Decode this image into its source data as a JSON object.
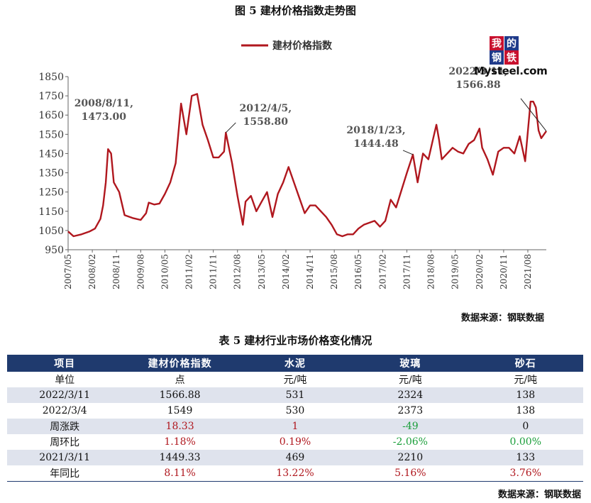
{
  "figure_title": "图 5  建材价格指数走势图",
  "logo": {
    "line1": [
      "我",
      "的"
    ],
    "line2": [
      "钢",
      "铁"
    ],
    "wordmark": "Mysteel.com",
    "colors": [
      "#c8102e",
      "#1f3a8a"
    ]
  },
  "chart_source": "数据来源：钢联数据",
  "chart_data": {
    "type": "line",
    "series": [
      {
        "name": "建材价格指数",
        "color": "#b0171e",
        "points": [
          [
            "2007/05",
            1045
          ],
          [
            "2007/07",
            1020
          ],
          [
            "2007/10",
            1030
          ],
          [
            "2008/01",
            1045
          ],
          [
            "2008/03",
            1060
          ],
          [
            "2008/05",
            1110
          ],
          [
            "2008/06",
            1180
          ],
          [
            "2008/07",
            1300
          ],
          [
            "2008/08/11",
            1473.0
          ],
          [
            "2008/09",
            1450
          ],
          [
            "2008/10",
            1300
          ],
          [
            "2008/12",
            1250
          ],
          [
            "2009/02",
            1130
          ],
          [
            "2009/05",
            1115
          ],
          [
            "2009/08",
            1105
          ],
          [
            "2009/10",
            1140
          ],
          [
            "2009/11",
            1195
          ],
          [
            "2010/01",
            1185
          ],
          [
            "2010/03",
            1190
          ],
          [
            "2010/05",
            1240
          ],
          [
            "2010/07",
            1300
          ],
          [
            "2010/09",
            1400
          ],
          [
            "2010/11",
            1710
          ],
          [
            "2011/01",
            1550
          ],
          [
            "2011/03",
            1750
          ],
          [
            "2011/05",
            1760
          ],
          [
            "2011/07",
            1600
          ],
          [
            "2011/09",
            1520
          ],
          [
            "2011/11",
            1430
          ],
          [
            "2012/01",
            1430
          ],
          [
            "2012/03",
            1460
          ],
          [
            "2012/04/05",
            1558.8
          ],
          [
            "2012/06",
            1400
          ],
          [
            "2012/08",
            1230
          ],
          [
            "2012/10",
            1080
          ],
          [
            "2012/11",
            1200
          ],
          [
            "2013/01",
            1230
          ],
          [
            "2013/03",
            1150
          ],
          [
            "2013/05",
            1200
          ],
          [
            "2013/07",
            1250
          ],
          [
            "2013/09",
            1120
          ],
          [
            "2013/11",
            1240
          ],
          [
            "2014/01",
            1300
          ],
          [
            "2014/03",
            1380
          ],
          [
            "2014/05",
            1300
          ],
          [
            "2014/07",
            1220
          ],
          [
            "2014/09",
            1140
          ],
          [
            "2014/11",
            1180
          ],
          [
            "2015/01",
            1180
          ],
          [
            "2015/03",
            1150
          ],
          [
            "2015/05",
            1120
          ],
          [
            "2015/07",
            1080
          ],
          [
            "2015/09",
            1030
          ],
          [
            "2015/11",
            1020
          ],
          [
            "2016/01",
            1030
          ],
          [
            "2016/03",
            1030
          ],
          [
            "2016/05",
            1060
          ],
          [
            "2016/07",
            1080
          ],
          [
            "2016/09",
            1090
          ],
          [
            "2016/11",
            1100
          ],
          [
            "2017/01",
            1070
          ],
          [
            "2017/03",
            1100
          ],
          [
            "2017/05",
            1210
          ],
          [
            "2017/07",
            1170
          ],
          [
            "2017/09",
            1260
          ],
          [
            "2017/11",
            1350
          ],
          [
            "2018/01/23",
            1444.48
          ],
          [
            "2018/03",
            1300
          ],
          [
            "2018/05",
            1450
          ],
          [
            "2018/07",
            1420
          ],
          [
            "2018/09",
            1540
          ],
          [
            "2018/10",
            1600
          ],
          [
            "2018/11",
            1520
          ],
          [
            "2018/12",
            1420
          ],
          [
            "2019/02",
            1450
          ],
          [
            "2019/04",
            1480
          ],
          [
            "2019/06",
            1460
          ],
          [
            "2019/08",
            1450
          ],
          [
            "2019/10",
            1500
          ],
          [
            "2019/12",
            1520
          ],
          [
            "2020/02",
            1580
          ],
          [
            "2020/03",
            1480
          ],
          [
            "2020/05",
            1420
          ],
          [
            "2020/07",
            1340
          ],
          [
            "2020/09",
            1460
          ],
          [
            "2020/11",
            1480
          ],
          [
            "2021/01",
            1480
          ],
          [
            "2021/03",
            1450
          ],
          [
            "2021/05",
            1540
          ],
          [
            "2021/07",
            1410
          ],
          [
            "2021/09",
            1720
          ],
          [
            "2021/10",
            1720
          ],
          [
            "2021/11",
            1690
          ],
          [
            "2021/12",
            1570
          ],
          [
            "2022/01",
            1530
          ],
          [
            "2022/03/11",
            1566.88
          ]
        ]
      }
    ],
    "x_ticks": [
      "2007/05",
      "2008/02",
      "2008/11",
      "2009/08",
      "2010/05",
      "2011/02",
      "2011/11",
      "2012/08",
      "2013/05",
      "2014/02",
      "2014/11",
      "2015/08",
      "2016/05",
      "2017/02",
      "2017/11",
      "2018/08",
      "2019/05",
      "2020/02",
      "2020/11",
      "2021/08"
    ],
    "y_ticks": [
      950,
      1050,
      1150,
      1250,
      1350,
      1450,
      1550,
      1650,
      1750,
      1850
    ],
    "ylim": [
      950,
      1850
    ],
    "xlim": [
      "2007/05",
      "2022/03/11"
    ],
    "legend_position": "top-center",
    "annotations": [
      {
        "date": "2008/08/11",
        "line1": "2008/8/11,",
        "line2": "1473.00"
      },
      {
        "date": "2012/04/05",
        "line1": "2012/4/5,",
        "line2": "1558.80"
      },
      {
        "date": "2018/01/23",
        "line1": "2018/1/23,",
        "line2": "1444.48"
      },
      {
        "date": "2022/03/11",
        "line1": "2022/3/11,",
        "line2": "1566.88"
      }
    ]
  },
  "table_title": "表 5 建材行业市场价格变化情况",
  "table": {
    "header": [
      "项目",
      "建材价格指数",
      "水泥",
      "玻璃",
      "砂石"
    ],
    "rows": [
      {
        "cells": [
          "单位",
          "点",
          "元/吨",
          "元/吨",
          "元/吨"
        ],
        "colors": [
          "",
          "",
          "",
          "",
          ""
        ]
      },
      {
        "cells": [
          "2022/3/11",
          "1566.88",
          "531",
          "2324",
          "138"
        ],
        "colors": [
          "",
          "",
          "",
          "",
          ""
        ]
      },
      {
        "cells": [
          "2022/3/4",
          "1549",
          "530",
          "2373",
          "138"
        ],
        "colors": [
          "",
          "",
          "",
          "",
          ""
        ]
      },
      {
        "cells": [
          "周涨跌",
          "18.33",
          "1",
          "-49",
          "0"
        ],
        "colors": [
          "",
          "red",
          "red",
          "green",
          ""
        ]
      },
      {
        "cells": [
          "周环比",
          "1.18%",
          "0.19%",
          "-2.06%",
          "0.00%"
        ],
        "colors": [
          "",
          "red",
          "red",
          "green",
          "green"
        ]
      },
      {
        "cells": [
          "2021/3/11",
          "1449.33",
          "469",
          "2210",
          "133"
        ],
        "colors": [
          "",
          "",
          "",
          "",
          ""
        ]
      },
      {
        "cells": [
          "年同比",
          "8.11%",
          "13.22%",
          "5.16%",
          "3.76%"
        ],
        "colors": [
          "",
          "red",
          "red",
          "red",
          "red"
        ]
      }
    ]
  },
  "table_source": "数据来源：钢联数据"
}
